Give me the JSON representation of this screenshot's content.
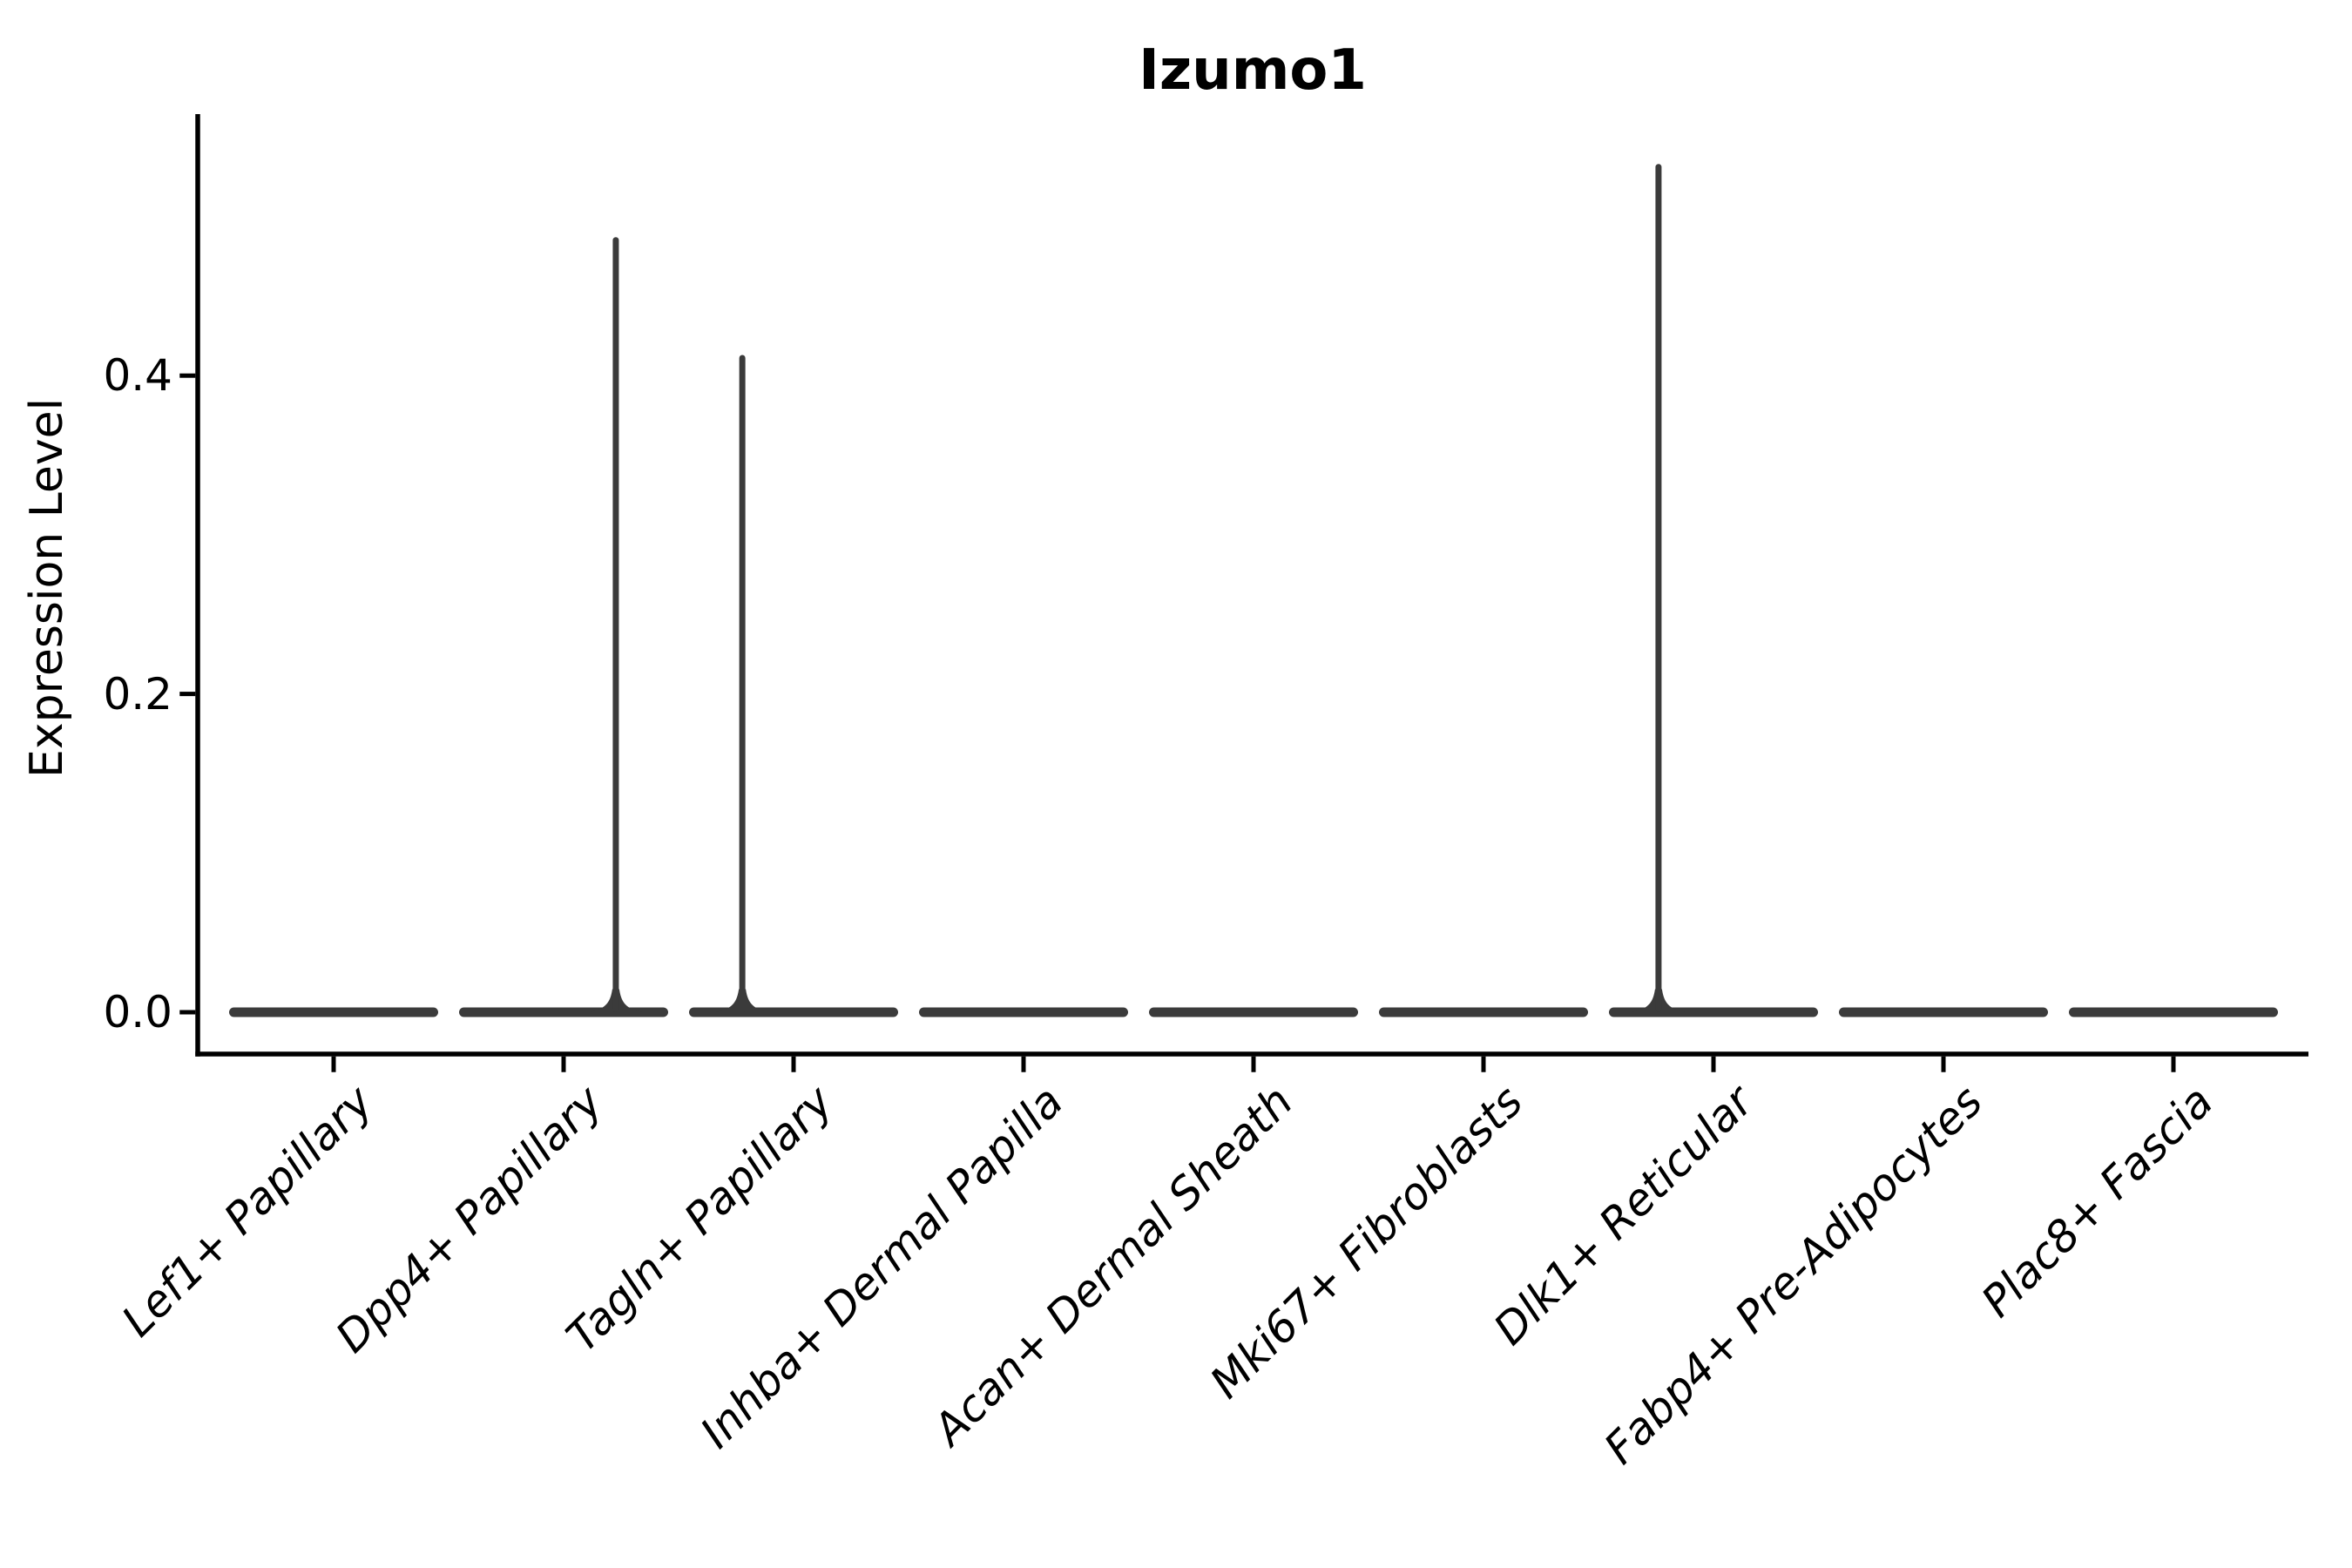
{
  "figure": {
    "title": "Izumo1",
    "y_axis_label": "Expression Level"
  },
  "chart_data": {
    "type": "violin",
    "title": "Izumo1",
    "xlabel": "",
    "ylabel": "Expression Level",
    "ylim": [
      -0.025,
      0.565
    ],
    "yticks": [
      0,
      0.2,
      0.4
    ],
    "ytick_labels": [
      "0.0",
      "0.2",
      "0.4"
    ],
    "grid": false,
    "legend": false,
    "x_label_rotation_deg": 45,
    "colors": {
      "violin": "#3b3b3b",
      "axis": "#000000",
      "background": "#ffffff",
      "text": "#000000"
    },
    "categories": [
      "Lef1+ Papillary",
      "Dpp4+ Papillary",
      "Tagln+ Papillary",
      "Inhba+ Dermal Papilla",
      "Acan+ Dermal Sheath",
      "Mki67+ Fibroblasts",
      "Dlk1+ Reticular",
      "Fabp4+ Pre-Adipocytes",
      "Plac8+ Fascia"
    ],
    "violins": [
      {
        "category": "Lef1+ Papillary",
        "body_value": 0,
        "peak_value": 0,
        "has_spike": false,
        "spike_offset_frac": 0
      },
      {
        "category": "Dpp4+ Papillary",
        "body_value": 0,
        "peak_value": 0.487,
        "has_spike": true,
        "spike_offset_frac": 0.227
      },
      {
        "category": "Tagln+ Papillary",
        "body_value": 0,
        "peak_value": 0.413,
        "has_spike": true,
        "spike_offset_frac": -0.223
      },
      {
        "category": "Inhba+ Dermal Papilla",
        "body_value": 0,
        "peak_value": 0,
        "has_spike": false,
        "spike_offset_frac": 0
      },
      {
        "category": "Acan+ Dermal Sheath",
        "body_value": 0,
        "peak_value": 0,
        "has_spike": false,
        "spike_offset_frac": 0
      },
      {
        "category": "Mki67+ Fibroblasts",
        "body_value": 0,
        "peak_value": 0,
        "has_spike": false,
        "spike_offset_frac": 0
      },
      {
        "category": "Dlk1+ Reticular",
        "body_value": 0,
        "peak_value": 0.533,
        "has_spike": true,
        "spike_offset_frac": -0.239
      },
      {
        "category": "Fabp4+ Pre-Adipocytes",
        "body_value": 0,
        "peak_value": 0,
        "has_spike": false,
        "spike_offset_frac": 0
      },
      {
        "category": "Plac8+ Fascia",
        "body_value": 0,
        "peak_value": 0,
        "has_spike": false,
        "spike_offset_frac": 0
      }
    ]
  }
}
